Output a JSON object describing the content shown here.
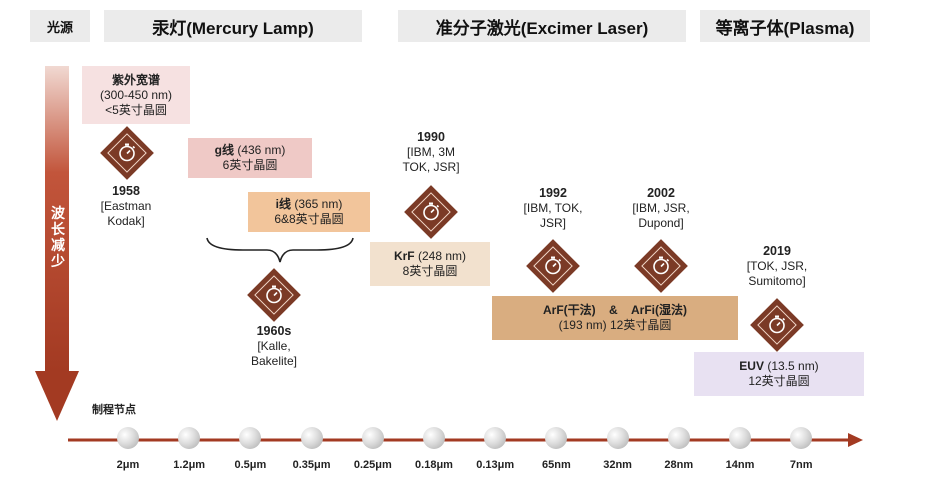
{
  "headers": {
    "light_source": "光源",
    "mercury": "汞灯(Mercury Lamp)",
    "excimer": "准分子激光(Excimer Laser)",
    "plasma": "等离子体(Plasma)"
  },
  "axis": {
    "wavelength_label": "波长减少",
    "process_label": "制程节点",
    "nodes": [
      "2μm",
      "1.2μm",
      "0.5μm",
      "0.35μm",
      "0.25μm",
      "0.18μm",
      "0.13μm",
      "65nm",
      "32nm",
      "28nm",
      "14nm",
      "7nm"
    ]
  },
  "sources": {
    "broadband": {
      "title": "紫外宽谱",
      "range": "(300-450 nm)",
      "wafer": "<5英寸晶圆"
    },
    "gline": {
      "title": "g线",
      "range": "(436 nm)",
      "wafer": "6英寸晶圆"
    },
    "iline": {
      "title": "i线",
      "range": "(365 nm)",
      "wafer": "6&8英寸晶圆"
    },
    "krf": {
      "title": "KrF",
      "range": "(248 nm)",
      "wafer": "8英寸晶圆"
    },
    "arf": {
      "title_dry": "ArF(干法)",
      "amp": "&",
      "title_wet": "ArFi(湿法)",
      "detail": "(193 nm) 12英寸晶圆"
    },
    "euv": {
      "title": "EUV",
      "range": "(13.5 nm)",
      "wafer": "12英寸晶圆"
    }
  },
  "milestones": {
    "m1958": {
      "year": "1958",
      "who1": "[Eastman",
      "who2": "Kodak]"
    },
    "m1960": {
      "year": "1960s",
      "who1": "[Kalle,",
      "who2": "Bakelite]"
    },
    "m1990": {
      "year": "1990",
      "who1": "[IBM, 3M",
      "who2": "TOK, JSR]"
    },
    "m1992": {
      "year": "1992",
      "who1": "[IBM, TOK,",
      "who2": "JSR]"
    },
    "m2002": {
      "year": "2002",
      "who1": "[IBM, JSR,",
      "who2": "Dupond]"
    },
    "m2019": {
      "year": "2019",
      "who1": "[TOK, JSR,",
      "who2": "Sumitomo]"
    }
  },
  "colors": {
    "diamond": "#7b3a26",
    "broadband_bg": "#f6e1e1",
    "gline_bg": "#efc9c6",
    "iline_bg": "#f2c59b",
    "krf_bg": "#f2e1ce",
    "arf_bg": "#d9ad80",
    "euv_bg": "#e8e1f2",
    "arrow": "#a33a22"
  }
}
